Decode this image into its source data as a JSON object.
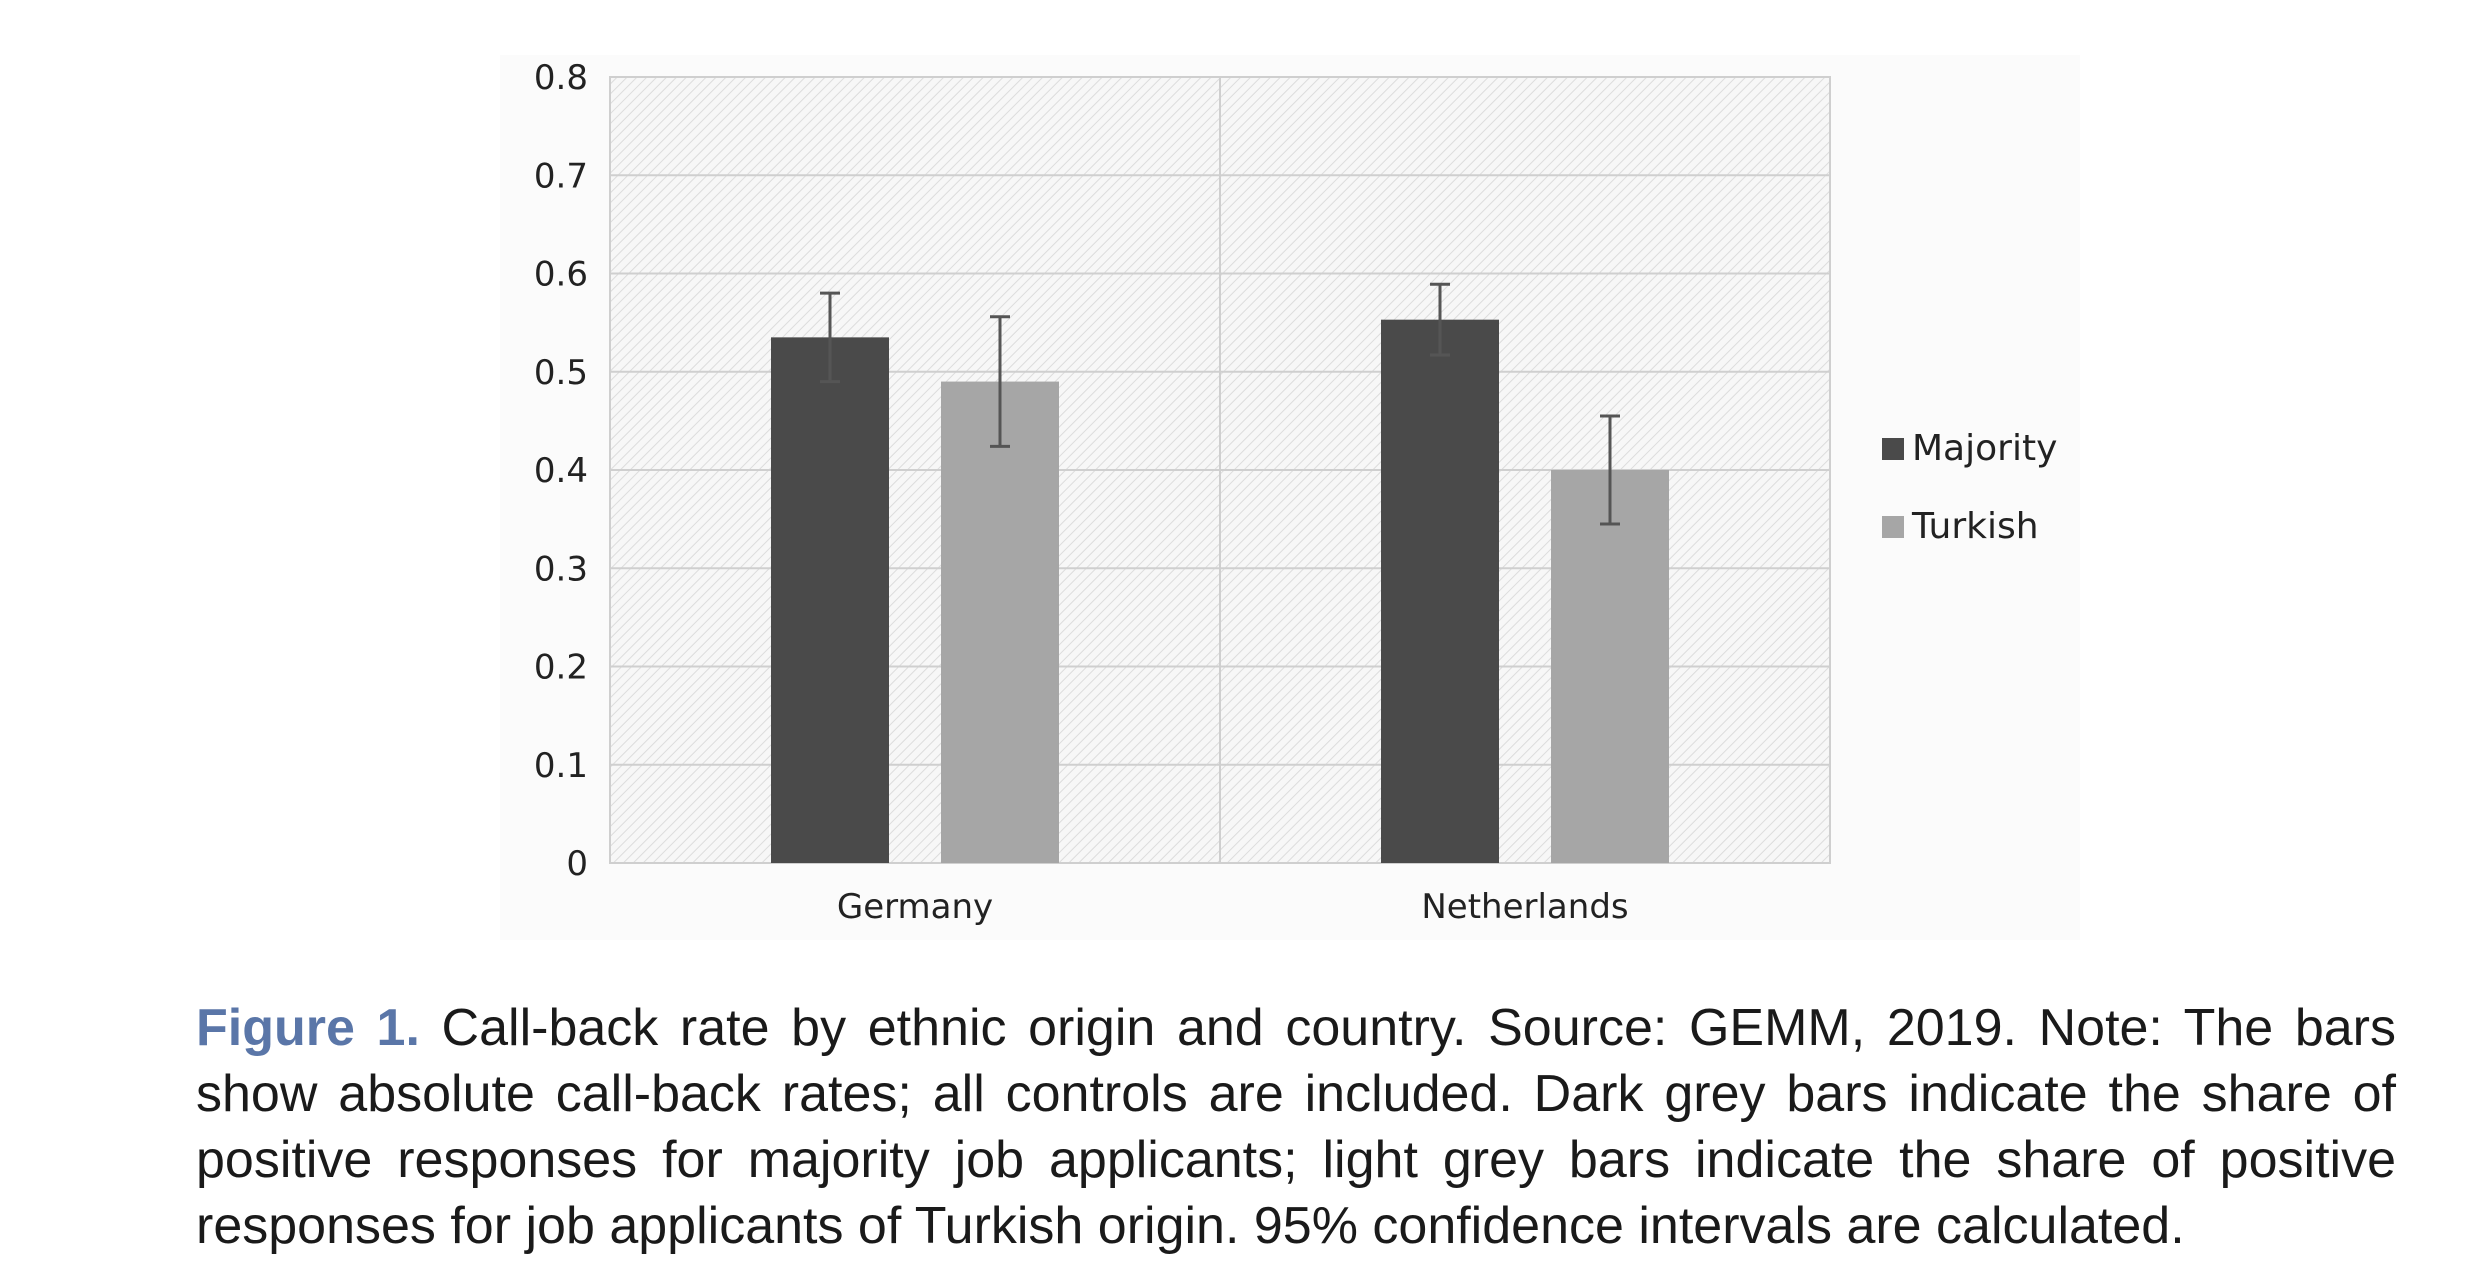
{
  "chart_data": {
    "type": "bar",
    "categories": [
      "Germany",
      "Netherlands"
    ],
    "series": [
      {
        "name": "Majority",
        "values": [
          0.535,
          0.553
        ],
        "ci_low": [
          0.49,
          0.517
        ],
        "ci_high": [
          0.58,
          0.589
        ],
        "color": "#4a4a4a"
      },
      {
        "name": "Turkish",
        "values": [
          0.49,
          0.4
        ],
        "ci_low": [
          0.424,
          0.345
        ],
        "ci_high": [
          0.556,
          0.455
        ],
        "color": "#a6a6a6"
      }
    ],
    "ylim": [
      0,
      0.8
    ],
    "yticks": [
      "0",
      "0.1",
      "0.2",
      "0.3",
      "0.4",
      "0.5",
      "0.6",
      "0.7",
      "0.8"
    ],
    "grid": true,
    "legend_position": "right"
  },
  "caption": {
    "label": "Figure 1.",
    "text": " Call-back rate by ethnic origin and country. Source: GEMM, 2019. Note: The bars show absolute call-back rates; all controls are included. Dark grey bars indicate the share of positive responses for majority job applicants; light grey bars indicate the share of positive responses for job applicants of Turkish origin. 95% confidence intervals are calculated."
  }
}
